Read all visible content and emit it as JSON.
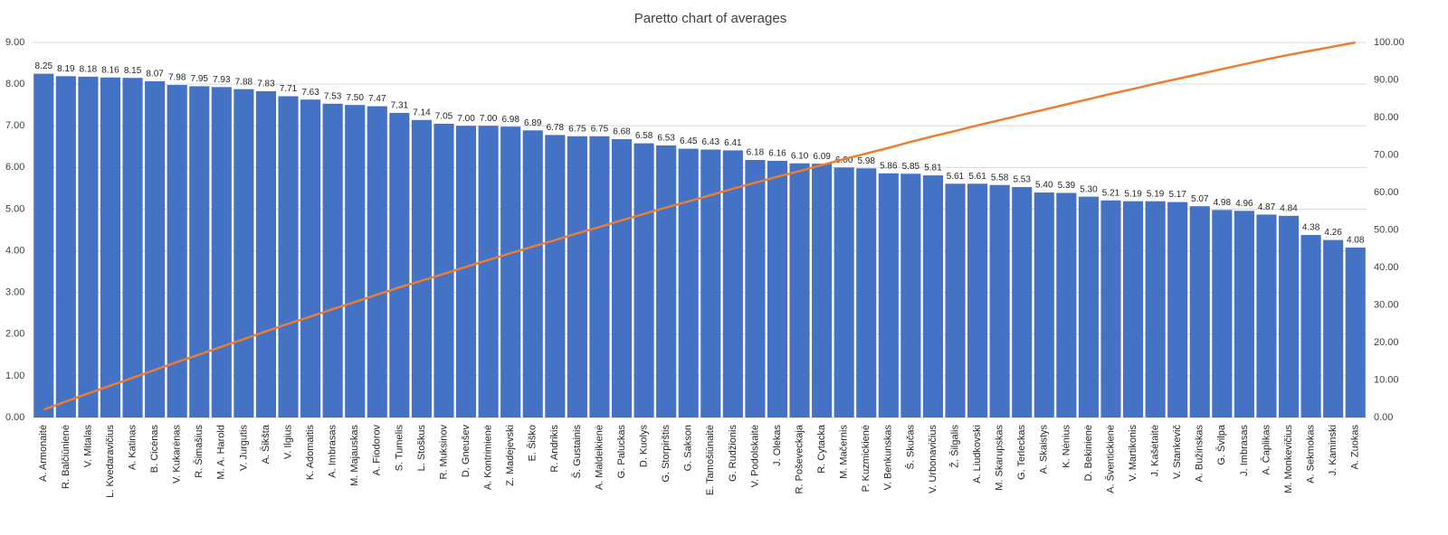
{
  "chart_data": {
    "type": "pareto",
    "title": "Paretto chart of averages",
    "categories": [
      "A. Armonaitė",
      "R. Balčiūnienė",
      "V. Mitalas",
      "L. Kvedaravičius",
      "A. Katinas",
      "B. Cicėnas",
      "V. Kukarėnas",
      "R. Šimašius",
      "M. A. Harold",
      "V. Jurgutis",
      "A. Šikšta",
      "V. Ilgius",
      "K. Adomaitis",
      "A. Imbrasas",
      "M. Majauskas",
      "A. Fiodorov",
      "S. Tumelis",
      "L. Stoškus",
      "R. Muksinov",
      "D. Gneušev",
      "A. Kontrimienė",
      "Z. Madejevski",
      "E. Šiško",
      "R. Andrikis",
      "Š. Gustainis",
      "A. Maldeikienė",
      "G. Paluckas",
      "D. Kuolys",
      "G. Storpirštis",
      "G. Sakson",
      "E. Tamošiūnaitė",
      "G. Rudžionis",
      "V. Podolskaitė",
      "J. Olekas",
      "R. Poševeckaja",
      "R. Cytacka",
      "M. Mačernis",
      "P. Kuzmickienė",
      "V. Benkunskas",
      "Š. Skučas",
      "V. Urbonavičius",
      "Ž. Šilgalis",
      "A. Liudkovski",
      "M. Skarupskas",
      "G. Terleckas",
      "A. Skaistys",
      "K. Nėnius",
      "D. Bekinienė",
      "A. Šventickienė",
      "V. Martikonis",
      "J. Kašėtaitė",
      "V. Stankevič",
      "A. Bužinskas",
      "G. Švilpa",
      "J. Imbrasas",
      "A. Čaplikas",
      "M. Monkevičius",
      "A. Sekmokas",
      "J. Kaminski",
      "A. Zuokas"
    ],
    "series": [
      {
        "type": "bar",
        "color": "#4472c4",
        "values": [
          8.25,
          8.19,
          8.18,
          8.16,
          8.15,
          8.07,
          7.98,
          7.95,
          7.93,
          7.88,
          7.83,
          7.71,
          7.63,
          7.53,
          7.5,
          7.47,
          7.31,
          7.14,
          7.05,
          7,
          7,
          6.98,
          6.89,
          6.78,
          6.75,
          6.75,
          6.68,
          6.58,
          6.53,
          6.45,
          6.43,
          6.41,
          6.18,
          6.16,
          6.1,
          6.09,
          6,
          5.98,
          5.86,
          5.85,
          5.81,
          5.61,
          5.61,
          5.58,
          5.53,
          5.4,
          5.39,
          5.3,
          5.21,
          5.19,
          5.19,
          5.17,
          5.07,
          4.98,
          4.96,
          4.87,
          4.84,
          4.38,
          4.26,
          4.08
        ],
        "value_labels": [
          "8.25",
          "8.19",
          "8.18",
          "8.16",
          "8.15",
          "8.07",
          "7.98",
          "7.95",
          "7.93",
          "7.88",
          "7.83",
          "7.71",
          "7.63",
          "7.53",
          "7.50",
          "7.47",
          "7.31",
          "7.14",
          "7.05",
          "7.00",
          "7.00",
          "6.98",
          "6.89",
          "6.78",
          "6.75",
          "6.75",
          "6.68",
          "6.58",
          "6.53",
          "6.45",
          "6.43",
          "6.41",
          "6.18",
          "6.16",
          "6.10",
          "6.09",
          "6.00",
          "5.98",
          "5.86",
          "5.85",
          "5.81",
          "5.61",
          "5.61",
          "5.58",
          "5.53",
          "5.40",
          "5.39",
          "5.30",
          "5.21",
          "5.19",
          "5.19",
          "5.17",
          "5.07",
          "4.98",
          "4.96",
          "4.87",
          "4.84",
          "4.38",
          "4.26",
          "4.08"
        ]
      },
      {
        "type": "line",
        "axis": "y2",
        "color": "#ed7d31",
        "values": [
          2.1,
          4.3,
          6.4,
          8.5,
          10.6,
          12.7,
          14.8,
          16.8,
          18.9,
          20.9,
          23.0,
          25.0,
          26.9,
          28.9,
          30.8,
          32.8,
          34.7,
          36.5,
          38.3,
          40.2,
          42.0,
          43.8,
          45.6,
          47.3,
          49.1,
          50.8,
          52.6,
          54.3,
          56.0,
          57.6,
          59.3,
          61.0,
          62.6,
          64.2,
          65.7,
          67.3,
          68.9,
          70.4,
          71.9,
          73.5,
          75.0,
          76.4,
          77.9,
          79.3,
          80.7,
          82.1,
          83.5,
          84.9,
          86.3,
          87.6,
          89.0,
          90.3,
          91.6,
          92.9,
          94.2,
          95.5,
          96.7,
          97.8,
          98.9,
          100
        ]
      }
    ],
    "ylim": [
      0,
      9
    ],
    "yticks": [
      {
        "value": 0,
        "label": "0.00"
      },
      {
        "value": 1,
        "label": "1.00"
      },
      {
        "value": 2,
        "label": "2.00"
      },
      {
        "value": 3,
        "label": "3.00"
      },
      {
        "value": 4,
        "label": "4.00"
      },
      {
        "value": 5,
        "label": "5.00"
      },
      {
        "value": 6,
        "label": "6.00"
      },
      {
        "value": 7,
        "label": "7.00"
      },
      {
        "value": 8,
        "label": "8.00"
      },
      {
        "value": 9,
        "label": "9.00"
      }
    ],
    "y2lim": [
      0,
      100
    ],
    "y2ticks": [
      {
        "value": 0,
        "label": "0.00"
      },
      {
        "value": 10,
        "label": "10.00"
      },
      {
        "value": 20,
        "label": "20.00"
      },
      {
        "value": 30,
        "label": "30.00"
      },
      {
        "value": 40,
        "label": "40.00"
      },
      {
        "value": 50,
        "label": "50.00"
      },
      {
        "value": 60,
        "label": "60.00"
      },
      {
        "value": 70,
        "label": "70.00"
      },
      {
        "value": 80,
        "label": "80.00"
      },
      {
        "value": 90,
        "label": "90.00"
      },
      {
        "value": 100,
        "label": "100.00"
      }
    ],
    "grid": true
  }
}
